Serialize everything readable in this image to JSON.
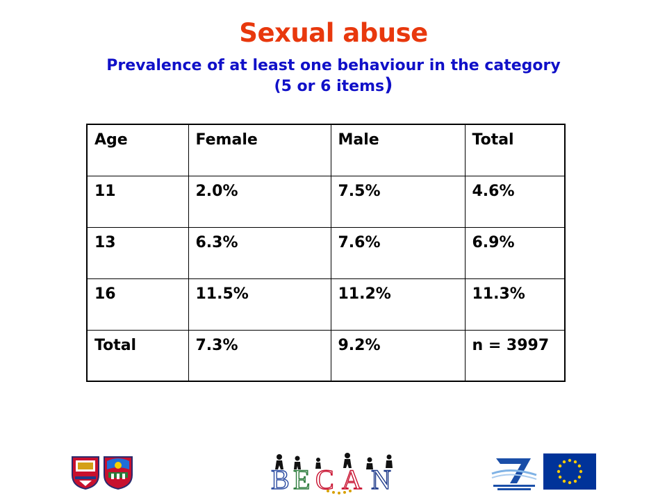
{
  "slide": {
    "title": "Sexual abuse",
    "subtitle_line1": "Prevalence of at least one behaviour in the category",
    "subtitle_line2": "(5 or 6 items",
    "subtitle_close": ")",
    "colors": {
      "title": "#e8380d",
      "subtitle": "#1010c8",
      "text": "#000000"
    }
  },
  "table": {
    "headers": [
      "Age",
      "Female",
      "Male",
      "Total"
    ],
    "rows": [
      [
        "11",
        "2.0%",
        "7.5%",
        "4.6%"
      ],
      [
        "13",
        "6.3%",
        "7.6%",
        "6.9%"
      ],
      [
        "16",
        "11.5%",
        "11.2%",
        "11.3%"
      ],
      [
        "Total",
        "7.3%",
        "9.2%",
        "n = 3997"
      ]
    ]
  },
  "footer": {
    "logos": [
      "university-crest-icon",
      "city-crest-icon",
      "becan-logo",
      "fp7-logo",
      "eu-flag-icon"
    ],
    "becan_text": "BECAN"
  }
}
